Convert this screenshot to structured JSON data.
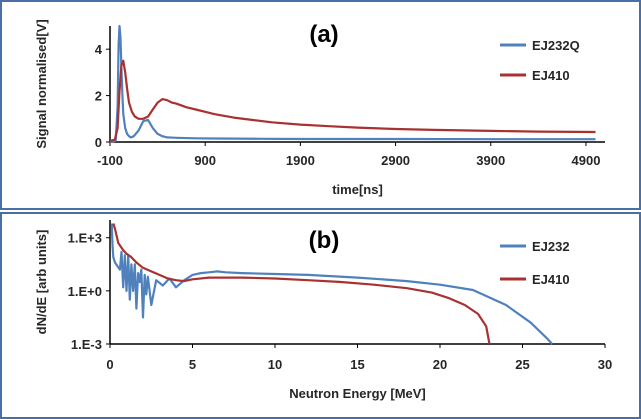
{
  "chart_data": [
    {
      "type": "line",
      "panel_label": "(a)",
      "xlabel": "time[ns]",
      "ylabel": "Signal normalised[V]",
      "xlim": [
        -100,
        5100
      ],
      "ylim": [
        0,
        5
      ],
      "x_ticks": [
        -100,
        900,
        1900,
        2900,
        3900,
        4900
      ],
      "y_ticks": [
        0,
        2,
        4
      ],
      "grid": false,
      "legend_position": "top-right",
      "series": [
        {
          "name": "EJ232Q",
          "color": "#4f81bd",
          "x": [
            -100,
            -40,
            -20,
            -10,
            0,
            10,
            20,
            30,
            40,
            60,
            80,
            100,
            120,
            150,
            200,
            250,
            300,
            350,
            400,
            450,
            500,
            600,
            800,
            1000,
            1500,
            2000,
            3000,
            4000,
            5000
          ],
          "y": [
            0.0,
            0.05,
            1.5,
            4.2,
            5.0,
            4.5,
            3.2,
            2.0,
            1.2,
            0.6,
            0.35,
            0.25,
            0.2,
            0.25,
            0.5,
            0.9,
            0.95,
            0.6,
            0.35,
            0.25,
            0.2,
            0.18,
            0.16,
            0.15,
            0.14,
            0.13,
            0.13,
            0.12,
            0.12
          ]
        },
        {
          "name": "EJ410",
          "color": "#a83232",
          "x": [
            -100,
            -50,
            -20,
            0,
            20,
            40,
            60,
            80,
            100,
            130,
            160,
            200,
            250,
            300,
            350,
            400,
            450,
            500,
            550,
            600,
            700,
            800,
            900,
            1000,
            1200,
            1400,
            1600,
            1900,
            2200,
            2500,
            2900,
            3300,
            3900,
            4400,
            5000
          ],
          "y": [
            0.05,
            0.1,
            0.6,
            2.2,
            3.3,
            3.5,
            3.0,
            2.3,
            1.7,
            1.3,
            1.1,
            1.0,
            1.0,
            1.1,
            1.4,
            1.7,
            1.85,
            1.8,
            1.7,
            1.65,
            1.5,
            1.4,
            1.3,
            1.2,
            1.05,
            0.95,
            0.85,
            0.75,
            0.68,
            0.62,
            0.56,
            0.52,
            0.48,
            0.45,
            0.43
          ]
        }
      ]
    },
    {
      "type": "line",
      "panel_label": "(b)",
      "xlabel": "Neutron Energy [MeV]",
      "ylabel": "dN/dE [arb units]",
      "xlim": [
        0,
        30
      ],
      "ylim": [
        -3,
        4
      ],
      "y_scale": "log10",
      "x_ticks": [
        0,
        5,
        10,
        15,
        20,
        25,
        30
      ],
      "y_tick_labels": [
        "1.E-3",
        "1.E+0",
        "1.E+3"
      ],
      "y_tick_values": [
        -3,
        0,
        3
      ],
      "grid": false,
      "legend_position": "top-right",
      "series": [
        {
          "name": "EJ232",
          "color": "#4f81bd",
          "x": [
            0.1,
            0.15,
            0.2,
            0.3,
            0.45,
            0.6,
            0.7,
            0.8,
            0.9,
            1.0,
            1.1,
            1.2,
            1.3,
            1.4,
            1.5,
            1.6,
            1.7,
            1.8,
            1.9,
            2.0,
            2.1,
            2.2,
            2.3,
            2.5,
            2.8,
            3.2,
            3.6,
            4.0,
            4.5,
            5.0,
            5.5,
            6.0,
            6.5,
            7.0,
            8.0,
            10.0,
            12.0,
            15.0,
            18.0,
            20.0,
            22.0,
            24.0,
            25.5,
            26.5,
            26.8
          ],
          "y": [
            3.8,
            2.6,
            1.9,
            1.6,
            1.4,
            1.2,
            2.2,
            0.2,
            2.0,
            0.0,
            2.0,
            -0.5,
            1.5,
            0.0,
            1.5,
            -1.0,
            1.0,
            0.5,
            1.2,
            -1.5,
            0.9,
            -0.2,
            0.8,
            -0.8,
            0.6,
            0.3,
            0.7,
            0.2,
            0.6,
            0.9,
            1.0,
            1.05,
            1.1,
            1.05,
            1.0,
            0.95,
            0.9,
            0.75,
            0.55,
            0.35,
            0.05,
            -0.8,
            -1.8,
            -2.7,
            -3.0
          ]
        },
        {
          "name": "EJ410",
          "color": "#a83232",
          "x": [
            0.2,
            0.3,
            0.5,
            0.8,
            1.0,
            1.3,
            1.6,
            2.0,
            2.5,
            3.0,
            3.5,
            4.0,
            4.5,
            5.0,
            6.0,
            8.0,
            10.0,
            12.0,
            14.0,
            16.0,
            18.0,
            19.5,
            20.5,
            21.5,
            22.3,
            22.8,
            23.0
          ],
          "y": [
            3.8,
            3.5,
            2.7,
            2.3,
            2.1,
            1.9,
            1.6,
            1.3,
            1.1,
            0.9,
            0.7,
            0.6,
            0.55,
            0.65,
            0.75,
            0.75,
            0.7,
            0.6,
            0.5,
            0.35,
            0.15,
            -0.1,
            -0.4,
            -0.8,
            -1.3,
            -2.0,
            -3.0
          ]
        }
      ]
    }
  ]
}
